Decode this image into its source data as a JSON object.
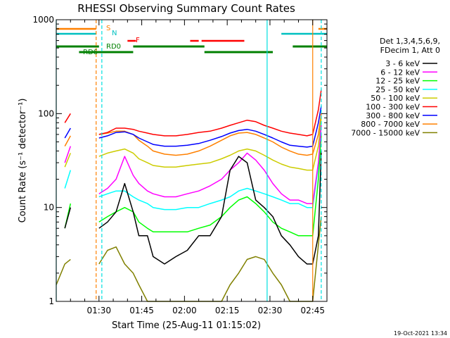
{
  "chart_data": {
    "type": "line",
    "title": "RHESSI Observing Summary Count Rates",
    "xlabel": "Start Time (25-Aug-11 01:15:02)",
    "ylabel": "Count Rate (s⁻¹ detector⁻¹)",
    "yscale": "log",
    "ylim": [
      1,
      1000
    ],
    "xlim_minutes": [
      0,
      95
    ],
    "x_ticks": [
      {
        "label": "01:30",
        "minute": 15
      },
      {
        "label": "01:45",
        "minute": 30
      },
      {
        "label": "02:00",
        "minute": 45
      },
      {
        "label": "02:15",
        "minute": 60
      },
      {
        "label": "02:30",
        "minute": 75
      },
      {
        "label": "02:45",
        "minute": 90
      }
    ],
    "y_ticks": [
      {
        "label": "1",
        "value": 1
      },
      {
        "label": "10",
        "value": 10
      },
      {
        "label": "100",
        "value": 100
      },
      {
        "label": "1000",
        "value": 1000
      }
    ],
    "legend_header": [
      "Det 1,3,4,5,6,9,",
      "FDecim 1, Att 0"
    ],
    "legend_position": "right",
    "flag_labels": {
      "S": "S",
      "N": "N",
      "F": "F",
      "RD0": "RD0",
      "RD6": "RD6"
    },
    "x_minutes": [
      0,
      3,
      5,
      14,
      15,
      18,
      21,
      24,
      27,
      29,
      32,
      34,
      38,
      42,
      46,
      50,
      54,
      58,
      61,
      64,
      67,
      70,
      73,
      76,
      79,
      82,
      85,
      88,
      90,
      92,
      93
    ],
    "series": [
      {
        "name": "3 - 6 keV",
        "color": "#000000",
        "values": [
          null,
          6,
          10,
          null,
          6,
          7,
          9,
          18,
          9,
          5,
          5,
          3,
          2.5,
          3,
          3.5,
          5,
          5,
          8,
          25,
          35,
          30,
          12,
          10,
          8,
          5,
          4,
          3,
          2.5,
          2.5,
          5,
          40
        ]
      },
      {
        "name": "6 - 12 keV",
        "color": "#ff00ff",
        "values": [
          null,
          30,
          45,
          null,
          14,
          16,
          20,
          35,
          22,
          18,
          15,
          14,
          13,
          13,
          14,
          15,
          17,
          20,
          25,
          30,
          38,
          32,
          25,
          18,
          14,
          12,
          12,
          11,
          11,
          30,
          75
        ]
      },
      {
        "name": "12 - 25 keV",
        "color": "#00ff00",
        "values": [
          null,
          6,
          11,
          null,
          7,
          8,
          9,
          10,
          9,
          7,
          6,
          5.5,
          5.5,
          5.5,
          5.5,
          6,
          6.5,
          8,
          10,
          12,
          13,
          11,
          9,
          7,
          6,
          5.5,
          5,
          5,
          5,
          20,
          60
        ]
      },
      {
        "name": "25 - 50 keV",
        "color": "#00ffff",
        "values": [
          null,
          16,
          25,
          null,
          13,
          14,
          15,
          15,
          13,
          12,
          11,
          10,
          9.5,
          9.5,
          10,
          10,
          11,
          12,
          13,
          15,
          16,
          15,
          14,
          13,
          12,
          11,
          11,
          10,
          10,
          28,
          80
        ]
      },
      {
        "name": "50 - 100 keV",
        "color": "#cccc00",
        "values": [
          null,
          27,
          38,
          null,
          35,
          38,
          40,
          42,
          38,
          33,
          30,
          28,
          27,
          27,
          28,
          29,
          30,
          33,
          36,
          40,
          42,
          40,
          36,
          32,
          29,
          27,
          26,
          25,
          25,
          45,
          90
        ]
      },
      {
        "name": "100 - 300 keV",
        "color": "#ff0000",
        "values": [
          null,
          80,
          100,
          null,
          60,
          63,
          70,
          70,
          68,
          65,
          62,
          60,
          58,
          58,
          60,
          63,
          65,
          70,
          75,
          80,
          85,
          82,
          75,
          70,
          65,
          62,
          60,
          58,
          60,
          110,
          180
        ]
      },
      {
        "name": "300 - 800 keV",
        "color": "#0000ff",
        "values": [
          null,
          55,
          70,
          null,
          55,
          58,
          63,
          64,
          60,
          55,
          50,
          47,
          45,
          45,
          46,
          48,
          52,
          57,
          62,
          66,
          68,
          65,
          60,
          55,
          50,
          46,
          45,
          44,
          45,
          80,
          120
        ]
      },
      {
        "name": "800 - 7000 keV",
        "color": "#ff8000",
        "values": [
          null,
          45,
          58,
          null,
          60,
          62,
          65,
          65,
          60,
          52,
          45,
          40,
          37,
          36,
          37,
          40,
          45,
          52,
          58,
          62,
          63,
          60,
          55,
          50,
          44,
          40,
          37,
          36,
          37,
          60,
          100
        ]
      },
      {
        "name": "7000 - 15000 keV",
        "color": "#808000",
        "values": [
          1.5,
          2.5,
          2.8,
          null,
          2.5,
          3.5,
          3.8,
          2.5,
          2,
          1.5,
          1,
          1,
          1,
          1,
          1,
          1,
          1,
          1,
          1.5,
          2,
          2.8,
          3,
          2.8,
          2,
          1.5,
          1,
          1,
          1,
          1,
          4,
          8
        ]
      }
    ]
  },
  "footer": {
    "timestamp": "19-Oct-2021 13:34"
  }
}
